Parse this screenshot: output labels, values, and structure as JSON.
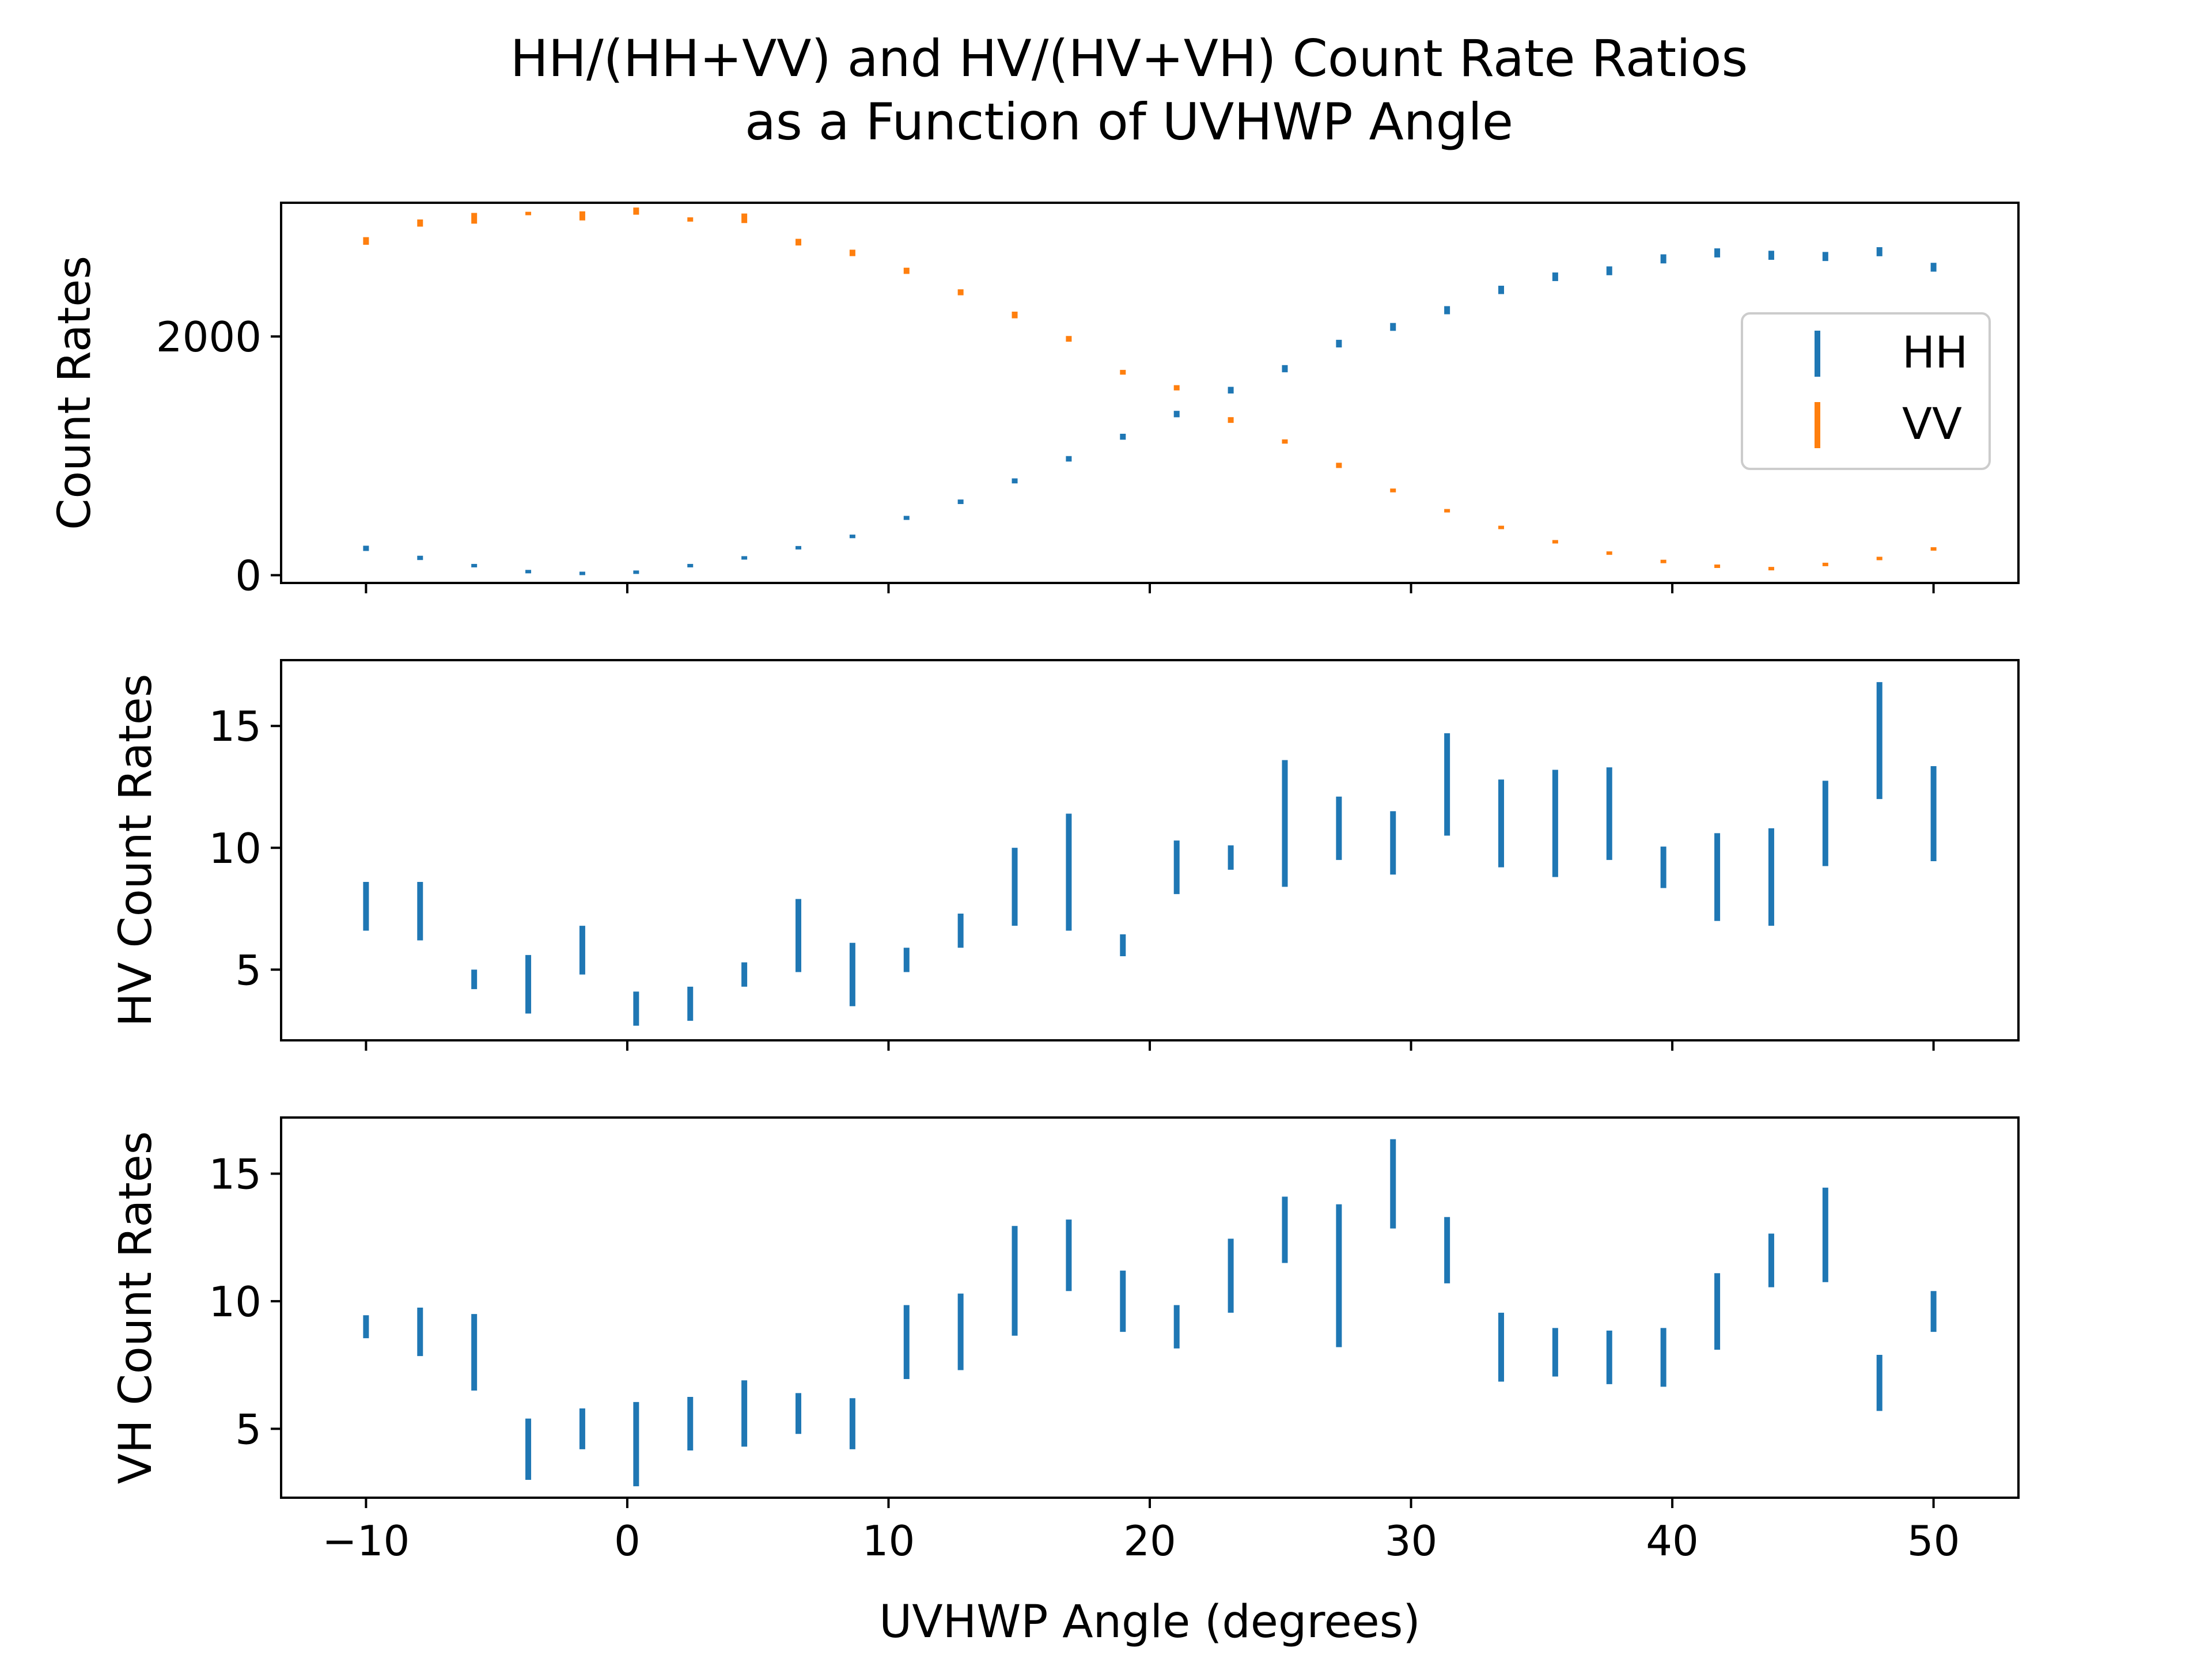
{
  "chart_data": {
    "type": "errorbar",
    "title_line1": "HH/(HH+VV) and HV/(HV+VH) Count Rate Ratios",
    "title_line2": "as a Function of UVHWP Angle",
    "xlabel": "UVHWP Angle (degrees)",
    "xlim": [
      -13.25,
      53.25
    ],
    "x_ticks": [
      -10,
      0,
      10,
      20,
      30,
      40,
      50
    ],
    "x_tick_labels": [
      "−10",
      "0",
      "10",
      "20",
      "30",
      "40",
      "50"
    ],
    "x": [
      -10,
      -7.93,
      -5.86,
      -3.79,
      -1.72,
      0.34,
      2.41,
      4.48,
      6.55,
      8.62,
      10.69,
      12.76,
      14.83,
      16.9,
      18.97,
      21.03,
      23.1,
      25.17,
      27.24,
      29.31,
      31.38,
      33.45,
      35.52,
      37.59,
      39.66,
      41.72,
      43.79,
      45.86,
      47.93,
      50
    ],
    "colors": {
      "series1": "#1f77b4",
      "series2": "#ff7f0e"
    },
    "panels": [
      {
        "ylabel": "Count Rates",
        "ylim": [
          -65,
          3120
        ],
        "y_ticks": [
          0,
          2000
        ],
        "y_tick_labels": [
          "0",
          "2000"
        ],
        "legend_position": "center-right",
        "series": [
          {
            "name": "HH",
            "color": "#1f77b4",
            "y": [
              225,
              145,
              80,
              30,
              15,
              25,
              80,
              145,
              230,
              325,
              480,
              615,
              790,
              975,
              1160,
              1350,
              1550,
              1730,
              1940,
              2080,
              2220,
              2390,
              2500,
              2550,
              2650,
              2700,
              2680,
              2670,
              2710,
              2580
            ],
            "err": [
              22,
              18,
              10,
              6,
              5,
              6,
              9,
              11,
              14,
              15,
              17,
              19,
              21,
              23,
              25,
              27,
              28,
              30,
              32,
              33,
              34,
              35,
              36,
              37,
              38,
              38,
              38,
              38,
              38,
              37
            ]
          },
          {
            "name": "VV",
            "color": "#ff7f0e",
            "y": [
              2800,
              2950,
              2990,
              3030,
              3010,
              3050,
              2980,
              2990,
              2790,
              2700,
              2550,
              2370,
              2180,
              1980,
              1700,
              1570,
              1300,
              1120,
              920,
              710,
              540,
              400,
              280,
              185,
              115,
              75,
              55,
              90,
              140,
              220
            ],
            "err": [
              32,
              30,
              45,
              14,
              38,
              30,
              18,
              40,
              28,
              27,
              26,
              25,
              28,
              24,
              20,
              22,
              24,
              18,
              22,
              16,
              14,
              12,
              12,
              8,
              8,
              6,
              5,
              6,
              8,
              10
            ]
          }
        ]
      },
      {
        "ylabel": "HV Count Rates",
        "ylim": [
          2.1,
          17.7
        ],
        "y_ticks": [
          5,
          10,
          15
        ],
        "y_tick_labels": [
          "5",
          "10",
          "15"
        ],
        "series": [
          {
            "name": "",
            "color": "#1f77b4",
            "y": [
              7.6,
              7.4,
              4.6,
              4.4,
              5.8,
              3.4,
              3.6,
              4.8,
              6.4,
              4.8,
              5.4,
              6.6,
              8.4,
              9.0,
              6.0,
              9.2,
              9.6,
              11.0,
              10.8,
              10.2,
              12.6,
              11.0,
              11.0,
              11.4,
              9.2,
              8.8,
              8.8,
              11.0,
              14.4,
              11.4
            ],
            "err": [
              1.0,
              1.2,
              0.4,
              1.2,
              1.0,
              0.7,
              0.7,
              0.5,
              1.5,
              1.3,
              0.5,
              0.7,
              1.6,
              2.4,
              0.45,
              1.1,
              0.5,
              2.6,
              1.3,
              1.3,
              2.1,
              1.8,
              2.2,
              1.9,
              0.85,
              1.8,
              2.0,
              1.75,
              2.4,
              1.95
            ]
          }
        ]
      },
      {
        "ylabel": "VH Count Rates",
        "ylim": [
          2.3,
          17.2
        ],
        "y_ticks": [
          5,
          10,
          15
        ],
        "y_tick_labels": [
          "5",
          "10",
          "15"
        ],
        "series": [
          {
            "name": "",
            "color": "#1f77b4",
            "y": [
              9.0,
              8.8,
              8.0,
              4.2,
              5.0,
              4.4,
              5.2,
              5.6,
              5.6,
              5.2,
              8.4,
              8.8,
              10.8,
              11.8,
              10.0,
              9.0,
              11.0,
              12.8,
              11.0,
              14.6,
              12.0,
              8.2,
              8.0,
              7.8,
              7.8,
              9.6,
              11.6,
              12.6,
              6.8,
              9.6
            ],
            "err": [
              0.45,
              0.95,
              1.5,
              1.2,
              0.8,
              1.65,
              1.05,
              1.3,
              0.8,
              1.0,
              1.45,
              1.5,
              2.15,
              1.4,
              1.2,
              0.85,
              1.45,
              1.3,
              2.8,
              1.75,
              1.3,
              1.35,
              0.95,
              1.05,
              1.15,
              1.5,
              1.05,
              1.85,
              1.1,
              0.8
            ]
          }
        ]
      }
    ]
  }
}
